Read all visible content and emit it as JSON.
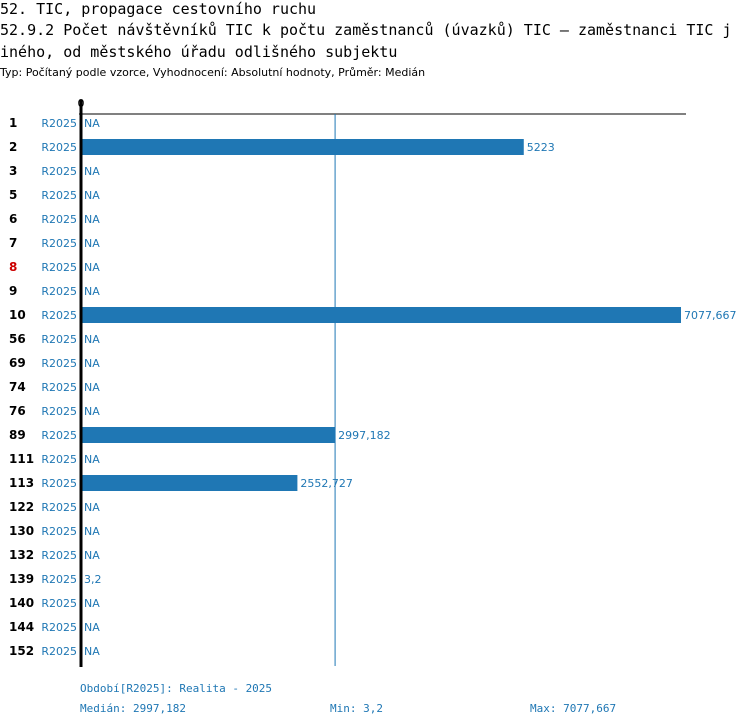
{
  "header": {
    "line1": "52. TIC, propagace cestovního ruchu",
    "line2": "52.9.2 Počet návštěvníků TIC k počtu zaměstnanců (úvazků) TIC – zaměstnanci TIC j",
    "line3": "iného, od městského úřadu odlišného subjektu",
    "subtitle": "Typ: Počítaný podle vzorce, Vyhodnocení: Absolutní hodnoty, Průměr: Medián"
  },
  "footer": {
    "period": "Období[R2025]: Realita - 2025",
    "median": "Medián: 2997,182",
    "min": "Min: 3,2",
    "max": "Max: 7077,667"
  },
  "colors": {
    "bar": "#1f77b4",
    "highlight_label": "#cc0000",
    "axis": "#000000"
  },
  "chart_data": {
    "type": "bar",
    "orientation": "horizontal",
    "series_label": "R2025",
    "x_tick": "0",
    "xlim": [
      0,
      7077.667
    ],
    "median_value": 2997.182,
    "categories": [
      "1",
      "2",
      "3",
      "5",
      "6",
      "7",
      "8",
      "9",
      "10",
      "56",
      "69",
      "74",
      "76",
      "89",
      "111",
      "113",
      "122",
      "130",
      "132",
      "139",
      "140",
      "144",
      "152"
    ],
    "values": [
      null,
      5223,
      null,
      null,
      null,
      null,
      null,
      null,
      7077.667,
      null,
      null,
      null,
      null,
      2997.182,
      null,
      2552.727,
      null,
      null,
      null,
      3.2,
      null,
      null,
      null
    ],
    "value_labels": [
      "NA",
      "5223",
      "NA",
      "NA",
      "NA",
      "NA",
      "NA",
      "NA",
      "7077,667",
      "NA",
      "NA",
      "NA",
      "NA",
      "2997,182",
      "NA",
      "2552,727",
      "NA",
      "NA",
      "NA",
      "3,2",
      "NA",
      "NA",
      "NA"
    ],
    "highlighted": [
      "8"
    ]
  }
}
